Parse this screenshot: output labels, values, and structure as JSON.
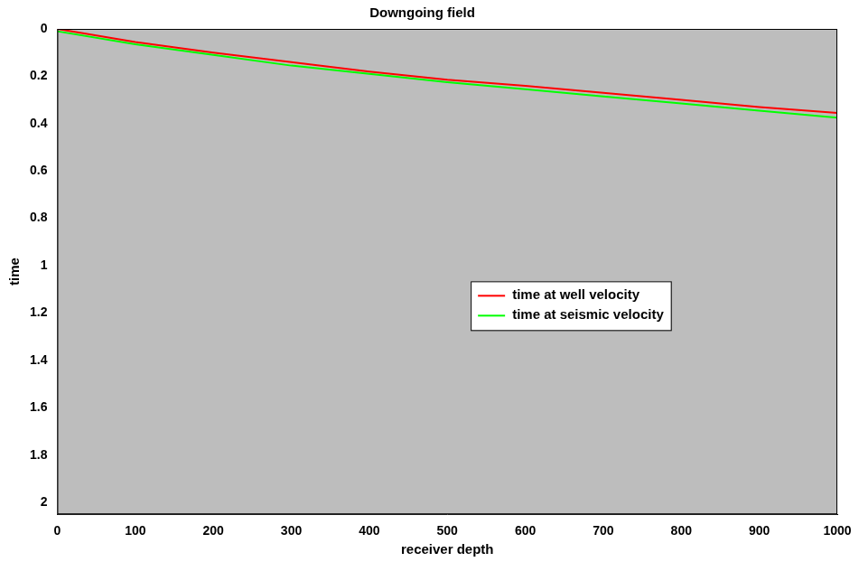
{
  "chart_data": {
    "type": "line",
    "title": "Downgoing field",
    "x_label": "receiver depth",
    "y_label": "time",
    "x": [
      0,
      100,
      200,
      300,
      400,
      500,
      600,
      700,
      800,
      900,
      1000
    ],
    "series": [
      {
        "name": "time at well velocity",
        "color": "#ff0000",
        "values": [
          0.0,
          0.055,
          0.1,
          0.14,
          0.18,
          0.215,
          0.24,
          0.27,
          0.3,
          0.33,
          0.355
        ]
      },
      {
        "name": "time at seismic velocity",
        "color": "#00ff00",
        "values": [
          0.01,
          0.065,
          0.11,
          0.155,
          0.19,
          0.225,
          0.255,
          0.285,
          0.315,
          0.345,
          0.375
        ]
      }
    ],
    "xlim": [
      0,
      1000
    ],
    "xticks": [
      0,
      100,
      200,
      300,
      400,
      500,
      600,
      700,
      800,
      900,
      1000
    ],
    "ylim": [
      0,
      2.05
    ],
    "yticks": [
      0,
      0.2,
      0.4,
      0.6,
      0.8,
      1,
      1.2,
      1.4,
      1.6,
      1.8,
      2
    ],
    "grid": false,
    "legend": "right"
  }
}
